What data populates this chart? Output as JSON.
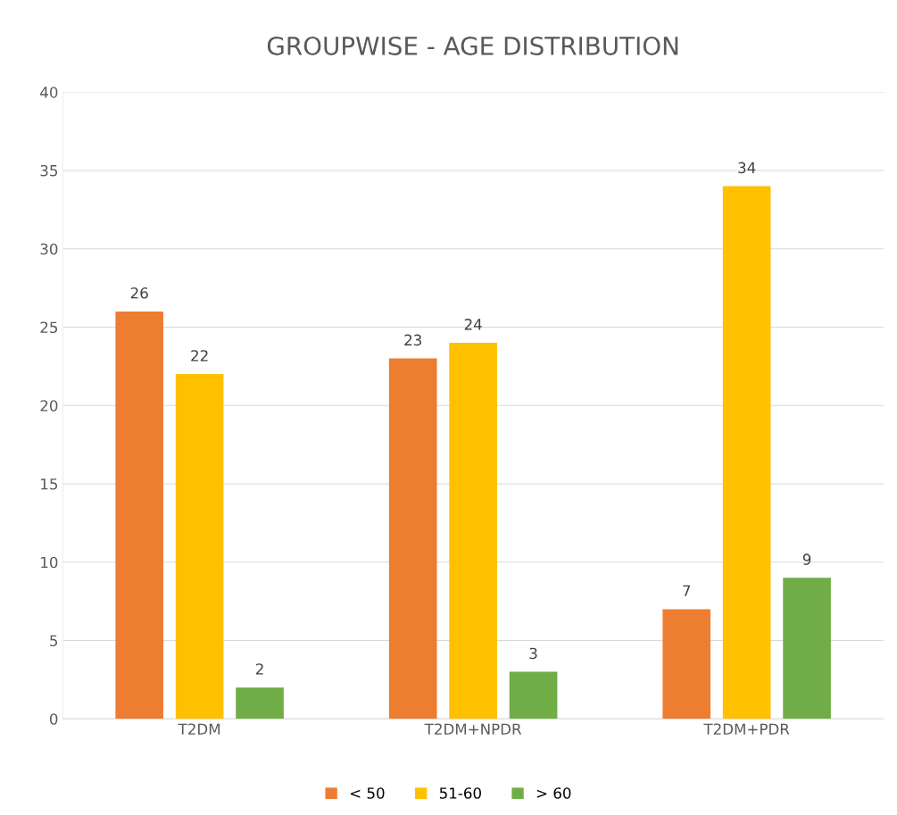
{
  "chart_data": {
    "type": "bar",
    "title": "GROUPWISE - AGE DISTRIBUTION",
    "categories": [
      "T2DM",
      "T2DM+NPDR",
      "T2DM+PDR"
    ],
    "series": [
      {
        "name": "< 50",
        "color": "#ed7d31",
        "values": [
          26,
          23,
          7
        ]
      },
      {
        "name": "51-60",
        "color": "#ffc000",
        "values": [
          22,
          24,
          34
        ]
      },
      {
        "name": "> 60",
        "color": "#70ad47",
        "values": [
          2,
          3,
          9
        ]
      }
    ],
    "ylim": [
      0,
      40
    ],
    "yticks": [
      0,
      5,
      10,
      15,
      20,
      25,
      30,
      35,
      40
    ],
    "grid": "y",
    "legend": "bottom",
    "data_labels": true
  }
}
